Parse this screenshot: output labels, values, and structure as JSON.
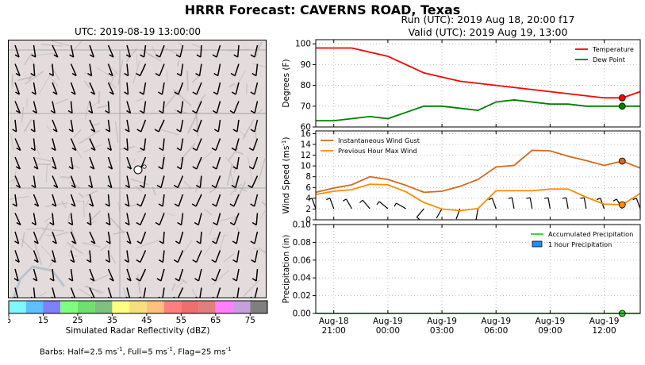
{
  "header": {
    "title": "HRRR Forecast: CAVERNS ROAD, Texas",
    "run": "Run (UTC): 2019 Aug 18, 20:00 f17",
    "valid": "Valid (UTC): 2019 Aug 19, 13:00"
  },
  "map": {
    "title": "UTC: 2019-08-19 13:00:00",
    "colorbar": {
      "label": "Simulated Radar Reflectivity (dBZ)",
      "ticks": [
        "5",
        "15",
        "25",
        "35",
        "45",
        "55",
        "65",
        "75"
      ],
      "colors": [
        "#7ff7ff",
        "#5fbfff",
        "#7f7fff",
        "#7fff7f",
        "#6fdf6f",
        "#7fbf7f",
        "#ffff7f",
        "#f7df7f",
        "#ffbf7f",
        "#ff7f7f",
        "#ef6f6f",
        "#df7f7f",
        "#ff7fff",
        "#c79fdf",
        "#7f7f7f"
      ]
    },
    "barbs_note": "Barbs: Half=2.5 ms",
    "barbs_note_mid1": ", Full=5 ms",
    "barbs_note_mid2": ", Flag=25 ms",
    "barbs_unit_exp": "-1"
  },
  "chart_data": [
    {
      "type": "line",
      "ylabel": "Degrees (F)",
      "ylim": [
        60,
        102
      ],
      "yticks": [
        60,
        70,
        80,
        90,
        100
      ],
      "grid": true,
      "legend": "top-right",
      "x": [
        "2019-08-18 20:00",
        "2019-08-18 21:00",
        "2019-08-18 22:00",
        "2019-08-18 23:00",
        "2019-08-19 00:00",
        "2019-08-19 01:00",
        "2019-08-19 02:00",
        "2019-08-19 03:00",
        "2019-08-19 04:00",
        "2019-08-19 05:00",
        "2019-08-19 06:00",
        "2019-08-19 07:00",
        "2019-08-19 08:00",
        "2019-08-19 09:00",
        "2019-08-19 10:00",
        "2019-08-19 11:00",
        "2019-08-19 12:00",
        "2019-08-19 13:00",
        "2019-08-19 14:00"
      ],
      "series": [
        {
          "name": "Temperature",
          "color": "#ff0000",
          "values": [
            98,
            98,
            98,
            96,
            94,
            90,
            86,
            84,
            82,
            81,
            80,
            79,
            78,
            77,
            76,
            75,
            74,
            74,
            77
          ]
        },
        {
          "name": "Dew Point",
          "color": "#008000",
          "values": [
            63,
            63,
            64,
            65,
            64,
            67,
            70,
            70,
            69,
            68,
            72,
            73,
            72,
            71,
            71,
            70,
            70,
            70,
            70
          ]
        }
      ],
      "marker_time": "2019-08-19 13:00"
    },
    {
      "type": "line",
      "ylabel": "Wind Speed (ms",
      "ylabel_exp": "-1",
      "ylabel_close": ")",
      "ylim": [
        0,
        16.5
      ],
      "yticks": [
        0,
        2,
        4,
        6,
        8,
        10,
        12,
        14,
        16
      ],
      "grid": true,
      "legend": "top-left",
      "x": [
        "2019-08-18 20:00",
        "2019-08-18 21:00",
        "2019-08-18 22:00",
        "2019-08-18 23:00",
        "2019-08-19 00:00",
        "2019-08-19 01:00",
        "2019-08-19 02:00",
        "2019-08-19 03:00",
        "2019-08-19 04:00",
        "2019-08-19 05:00",
        "2019-08-19 06:00",
        "2019-08-19 07:00",
        "2019-08-19 08:00",
        "2019-08-19 09:00",
        "2019-08-19 10:00",
        "2019-08-19 11:00",
        "2019-08-19 12:00",
        "2019-08-19 13:00",
        "2019-08-19 14:00"
      ],
      "series": [
        {
          "name": "Instantaneous Wind Gust",
          "color": "#d2691e",
          "values": [
            5.1,
            5.9,
            6.5,
            8.0,
            7.5,
            6.4,
            5.1,
            5.3,
            6.2,
            7.5,
            9.8,
            10.1,
            12.9,
            12.8,
            11.8,
            11.0,
            10.1,
            10.9,
            9.6
          ]
        },
        {
          "name": "Previous Hour Max Wind",
          "color": "#ff8c00",
          "values": [
            4.7,
            5.3,
            5.6,
            6.6,
            6.5,
            5.2,
            3.2,
            2.0,
            1.7,
            2.1,
            5.4,
            5.4,
            5.4,
            5.7,
            5.7,
            4.2,
            2.9,
            2.8,
            4.9
          ]
        }
      ],
      "barbs_speed_ms": [
        4.5,
        5.0,
        5.5,
        6.0,
        6.0,
        5.0,
        3.0,
        2.0,
        1.8,
        2.0,
        5.0,
        5.0,
        5.0,
        5.5,
        5.5,
        4.0,
        2.5,
        2.5,
        4.5
      ],
      "barbs_dir_deg": [
        200,
        200,
        210,
        220,
        230,
        240,
        320,
        330,
        340,
        350,
        200,
        190,
        190,
        190,
        190,
        190,
        200,
        210,
        200
      ],
      "marker_time": "2019-08-19 13:00"
    },
    {
      "type": "line",
      "ylabel": "Precipitation (in)",
      "ylim": [
        0,
        0.1
      ],
      "yticks": [
        "0.00",
        "0.02",
        "0.04",
        "0.06",
        "0.08",
        "0.10"
      ],
      "grid": true,
      "legend": "top-right",
      "xticks": [
        {
          "t": "2019-08-18 21:00",
          "l1": "Aug-18",
          "l2": "21:00"
        },
        {
          "t": "2019-08-19 00:00",
          "l1": "Aug-19",
          "l2": "00:00"
        },
        {
          "t": "2019-08-19 03:00",
          "l1": "Aug-19",
          "l2": "03:00"
        },
        {
          "t": "2019-08-19 06:00",
          "l1": "Aug-19",
          "l2": "06:00"
        },
        {
          "t": "2019-08-19 09:00",
          "l1": "Aug-19",
          "l2": "09:00"
        },
        {
          "t": "2019-08-19 12:00",
          "l1": "Aug-19",
          "l2": "12:00"
        }
      ],
      "series": [
        {
          "name": "Accumulated Precipitation",
          "color": "#32cd32",
          "values": [
            0,
            0,
            0,
            0,
            0,
            0,
            0,
            0,
            0,
            0,
            0,
            0,
            0,
            0,
            0,
            0,
            0,
            0,
            0
          ]
        },
        {
          "name": "1 hour Precipitation",
          "color": "#1e90ff",
          "type": "bar",
          "values": [
            0,
            0,
            0,
            0,
            0,
            0,
            0,
            0,
            0,
            0,
            0,
            0,
            0,
            0,
            0,
            0,
            0,
            0,
            0
          ]
        }
      ],
      "marker_time": "2019-08-19 13:00"
    }
  ]
}
